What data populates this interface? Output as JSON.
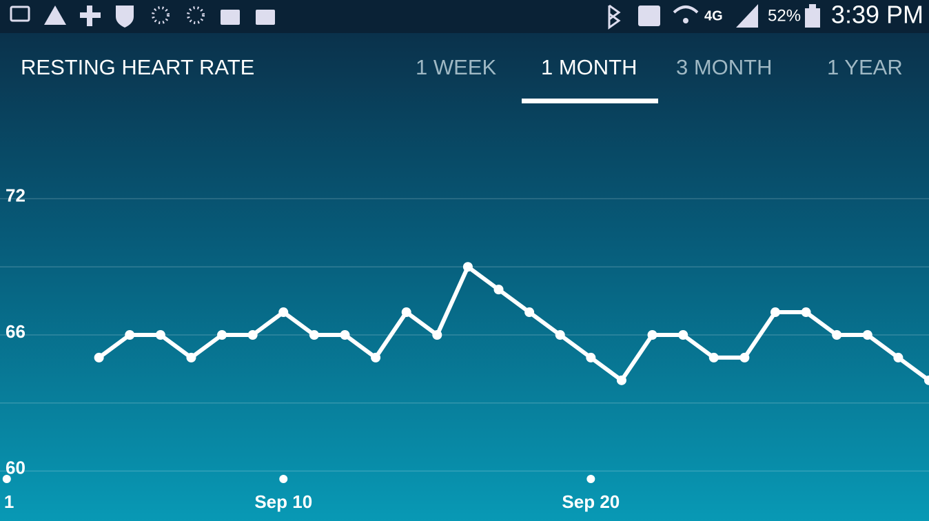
{
  "status_bar": {
    "network": "4G",
    "battery": "52%",
    "time": "3:39 PM"
  },
  "header": {
    "title": "RESTING HEART RATE",
    "tabs": [
      "1 WEEK",
      "1 MONTH",
      "3 MONTH",
      "1 YEAR"
    ],
    "selected_tab": "1 MONTH"
  },
  "chart_data": {
    "type": "line",
    "x": [
      4,
      5,
      6,
      7,
      8,
      9,
      10,
      11,
      12,
      13,
      14,
      15,
      16,
      17,
      18,
      19,
      20,
      21,
      22,
      23,
      24,
      25,
      26,
      27,
      28,
      29,
      30,
      31
    ],
    "series": [
      {
        "color": "#ffffff",
        "values": [
          65,
          66,
          66,
          65,
          66,
          66,
          67,
          66,
          66,
          65,
          67,
          66,
          69,
          68,
          67,
          66,
          65,
          64,
          66,
          66,
          65,
          65,
          67,
          67,
          66,
          66,
          65,
          64
        ]
      }
    ],
    "xlim": [
      0.78,
      31
    ],
    "xticks": [
      1,
      {
        "value": 10,
        "label": "Sep 10"
      },
      {
        "value": 20,
        "label": "Sep 20"
      }
    ],
    "ylim": [
      57.8,
      75.9
    ],
    "yticks": [
      60,
      66,
      72
    ],
    "grid_lines": [
      60,
      63,
      66,
      69,
      72
    ],
    "grid": true
  }
}
